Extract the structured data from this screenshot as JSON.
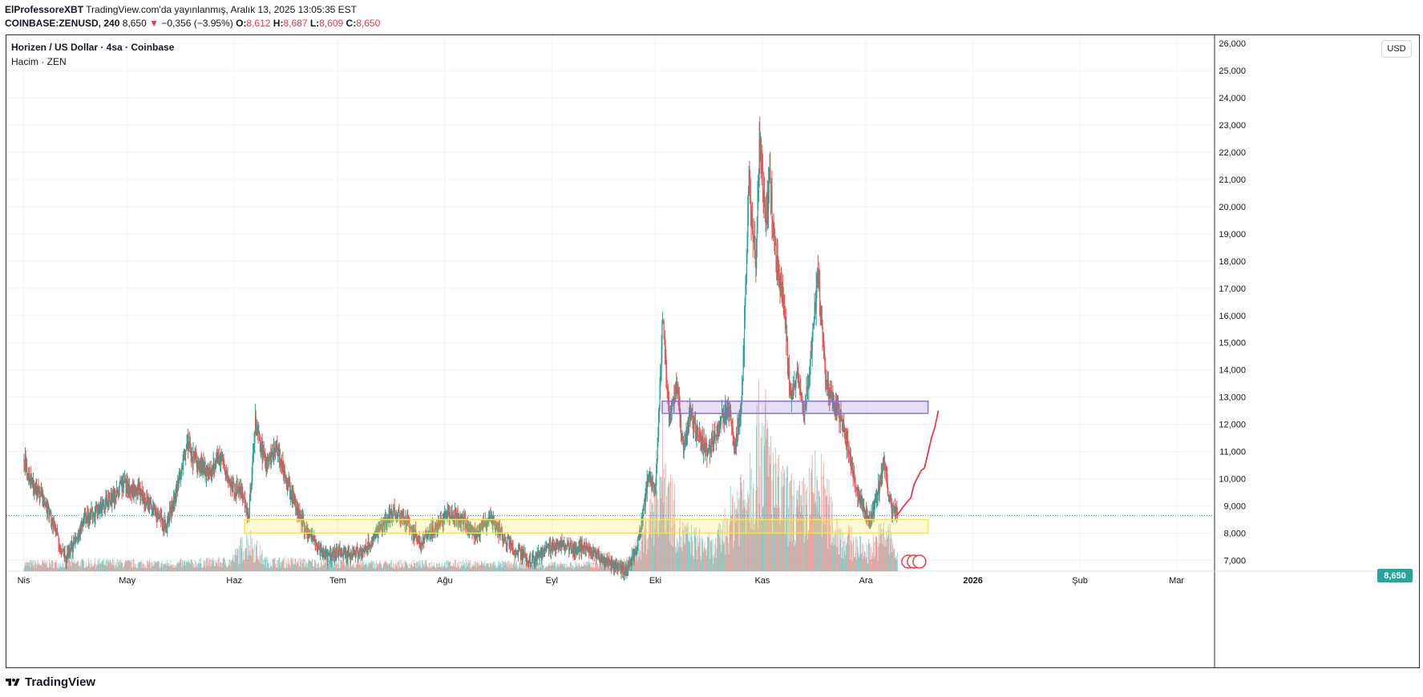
{
  "header": {
    "author": "ElProfessoreXBT",
    "published": "TradingView.com'da yayınlanmış, Aralık 13, 2025 13:05:35 EST",
    "symbol": "COINBASE:ZENUSD, 240",
    "last": "8,650",
    "change": "−0,356 (−3.95%)",
    "o_label": "O:",
    "o": "8,612",
    "h_label": "H:",
    "h": "8,687",
    "l_label": "L:",
    "l": "8,609",
    "c_label": "C:",
    "c": "8,650"
  },
  "legend": {
    "title": "Horizen / US Dollar · 4sa · Coinbase",
    "volume": "Hacim · ZEN"
  },
  "currency_button": "USD",
  "price_badge": "8,650",
  "footer": {
    "brand": "TradingView"
  },
  "colors": {
    "up": "#26a69a",
    "down": "#ef5350",
    "yellow_zone": "#f5e642",
    "purple_zone": "#8e6ee0",
    "projection": "#f23645",
    "current_line": "#26a69a"
  },
  "chart_data": {
    "type": "candlestick",
    "ylim": [
      6.6,
      26.3
    ],
    "y_ticks": [
      "7,000",
      "8,000",
      "9,000",
      "10,000",
      "11,000",
      "12,000",
      "13,000",
      "14,000",
      "15,000",
      "16,000",
      "17,000",
      "18,000",
      "19,000",
      "20,000",
      "21,000",
      "22,000",
      "23,000",
      "24,000",
      "25,000",
      "26,000"
    ],
    "y_tick_values": [
      7,
      8,
      9,
      10,
      11,
      12,
      13,
      14,
      15,
      16,
      17,
      18,
      19,
      20,
      21,
      22,
      23,
      24,
      25,
      26
    ],
    "x_ticks": [
      "Nis",
      "May",
      "Haz",
      "Tem",
      "Ağu",
      "Eyl",
      "Eki",
      "Kas",
      "Ara",
      "2026",
      "Şub",
      "Mar"
    ],
    "x_tick_days": [
      0,
      30,
      61,
      91,
      122,
      153,
      183,
      214,
      244,
      275,
      306,
      334
    ],
    "current_price": 8.65,
    "price_path": [
      [
        0,
        10.7
      ],
      [
        3,
        9.6
      ],
      [
        6,
        9.2
      ],
      [
        9,
        8.1
      ],
      [
        12,
        7.0
      ],
      [
        15,
        7.8
      ],
      [
        18,
        8.6
      ],
      [
        21,
        8.8
      ],
      [
        25,
        9.2
      ],
      [
        29,
        9.8
      ],
      [
        33,
        9.5
      ],
      [
        37,
        9.0
      ],
      [
        41,
        8.2
      ],
      [
        44,
        9.5
      ],
      [
        47,
        11.3
      ],
      [
        50,
        10.5
      ],
      [
        54,
        10.2
      ],
      [
        57,
        10.9
      ],
      [
        60,
        9.7
      ],
      [
        63,
        9.5
      ],
      [
        65,
        8.5
      ],
      [
        67,
        12.0
      ],
      [
        70,
        10.5
      ],
      [
        73,
        11.2
      ],
      [
        76,
        9.9
      ],
      [
        79,
        8.9
      ],
      [
        82,
        8.0
      ],
      [
        85,
        7.5
      ],
      [
        88,
        7.1
      ],
      [
        91,
        7.3
      ],
      [
        95,
        7.2
      ],
      [
        99,
        7.4
      ],
      [
        103,
        8.2
      ],
      [
        107,
        8.8
      ],
      [
        111,
        8.4
      ],
      [
        115,
        7.6
      ],
      [
        119,
        8.2
      ],
      [
        123,
        8.7
      ],
      [
        127,
        8.5
      ],
      [
        131,
        7.9
      ],
      [
        135,
        8.6
      ],
      [
        139,
        7.8
      ],
      [
        143,
        7.3
      ],
      [
        147,
        7.0
      ],
      [
        151,
        7.4
      ],
      [
        155,
        7.6
      ],
      [
        159,
        7.4
      ],
      [
        163,
        7.5
      ],
      [
        167,
        7.1
      ],
      [
        171,
        6.8
      ],
      [
        174,
        6.6
      ],
      [
        177,
        7.2
      ],
      [
        179,
        8.5
      ],
      [
        181,
        10.2
      ],
      [
        183,
        9.6
      ],
      [
        185,
        16.0
      ],
      [
        187,
        12.0
      ],
      [
        189,
        13.6
      ],
      [
        191,
        11.0
      ],
      [
        193,
        12.5
      ],
      [
        195,
        11.6
      ],
      [
        198,
        11.0
      ],
      [
        201,
        11.8
      ],
      [
        204,
        12.8
      ],
      [
        206,
        11.2
      ],
      [
        208,
        13.0
      ],
      [
        210,
        21.0
      ],
      [
        212,
        18.0
      ],
      [
        213,
        22.5
      ],
      [
        215,
        19.5
      ],
      [
        216,
        21.0
      ],
      [
        218,
        18.0
      ],
      [
        220,
        16.8
      ],
      [
        222,
        12.8
      ],
      [
        224,
        13.8
      ],
      [
        226,
        12.3
      ],
      [
        228,
        14.6
      ],
      [
        230,
        17.5
      ],
      [
        232,
        14.0
      ],
      [
        234,
        12.8
      ],
      [
        236,
        12.5
      ],
      [
        239,
        11.0
      ],
      [
        241,
        9.6
      ],
      [
        243,
        9.0
      ],
      [
        245,
        8.4
      ],
      [
        247,
        9.3
      ],
      [
        249,
        10.5
      ],
      [
        251,
        9.0
      ],
      [
        253,
        8.65
      ]
    ],
    "volume_path": [
      [
        0,
        0.3
      ],
      [
        20,
        0.35
      ],
      [
        40,
        0.3
      ],
      [
        60,
        0.4
      ],
      [
        65,
        1.3
      ],
      [
        70,
        0.4
      ],
      [
        100,
        0.3
      ],
      [
        130,
        0.3
      ],
      [
        160,
        0.25
      ],
      [
        175,
        0.4
      ],
      [
        180,
        1.6
      ],
      [
        185,
        4.2
      ],
      [
        190,
        1.5
      ],
      [
        200,
        0.9
      ],
      [
        210,
        3.8
      ],
      [
        214,
        5.5
      ],
      [
        218,
        3.2
      ],
      [
        225,
        2.4
      ],
      [
        230,
        3.5
      ],
      [
        236,
        1.5
      ],
      [
        244,
        0.8
      ],
      [
        250,
        1.6
      ],
      [
        253,
        0.6
      ]
    ],
    "zones": [
      {
        "name": "support",
        "x0": 64,
        "x1": 262,
        "y0": 8.0,
        "y1": 8.5
      },
      {
        "name": "resistance",
        "x0": 185,
        "x1": 262,
        "y0": 12.4,
        "y1": 12.85
      }
    ],
    "projection": [
      [
        253,
        8.65
      ],
      [
        255,
        9.0
      ],
      [
        257,
        9.3
      ],
      [
        258,
        9.8
      ],
      [
        260,
        10.3
      ],
      [
        261,
        10.4
      ],
      [
        263,
        11.5
      ],
      [
        264,
        11.9
      ],
      [
        265,
        12.5
      ]
    ]
  }
}
